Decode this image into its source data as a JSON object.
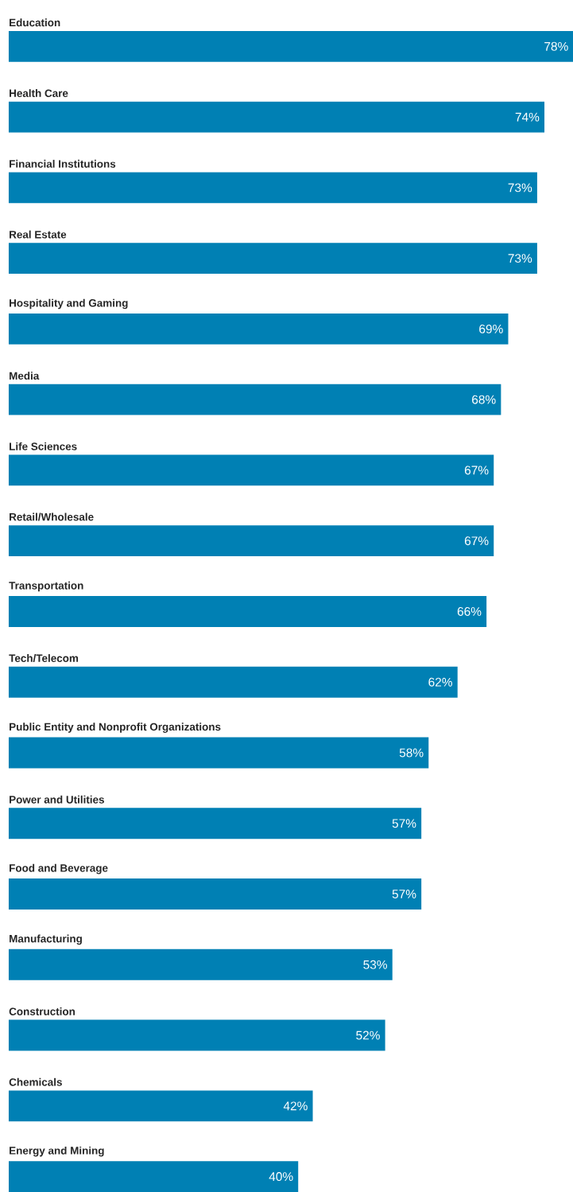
{
  "chart_data": {
    "type": "bar",
    "orientation": "horizontal",
    "color": "#0080b4",
    "categories": [
      "Education",
      "Health Care",
      "Financial Institutions",
      "Real Estate",
      "Hospitality and Gaming",
      "Media",
      "Life Sciences",
      "Retail/Wholesale",
      "Transportation",
      "Tech/Telecom",
      "Public Entity and Nonprofit Organizations",
      "Power and Utilities",
      "Food and Beverage",
      "Manufacturing",
      "Construction",
      "Chemicals",
      "Energy and Mining"
    ],
    "values": [
      78,
      74,
      73,
      73,
      69,
      68,
      67,
      67,
      66,
      62,
      58,
      57,
      57,
      53,
      52,
      42,
      40
    ],
    "value_labels": [
      "78%",
      "74%",
      "73%",
      "73%",
      "69%",
      "68%",
      "67%",
      "67%",
      "66%",
      "62%",
      "58%",
      "57%",
      "57%",
      "53%",
      "52%",
      "42%",
      "40%"
    ]
  }
}
